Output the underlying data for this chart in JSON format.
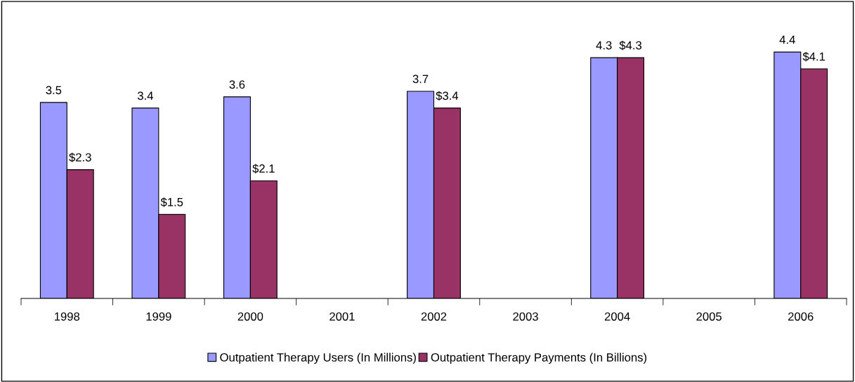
{
  "chart_data": {
    "type": "bar",
    "categories": [
      "1998",
      "1999",
      "2000",
      "2001",
      "2002",
      "2003",
      "2004",
      "2005",
      "2006"
    ],
    "series": [
      {
        "name": "Outpatient Therapy Users (In Millions)",
        "color": "#9999ff",
        "values": [
          3.5,
          3.4,
          3.6,
          null,
          3.7,
          null,
          4.3,
          null,
          4.4
        ],
        "value_labels": [
          "3.5",
          "3.4",
          "3.6",
          null,
          "3.7",
          null,
          "4.3",
          null,
          "4.4"
        ]
      },
      {
        "name": "Outpatient Therapy Payments (In Billions)",
        "color": "#993366",
        "values": [
          2.3,
          1.5,
          2.1,
          null,
          3.4,
          null,
          4.3,
          null,
          4.1
        ],
        "value_labels": [
          "$2.3",
          "$1.5",
          "$2.1",
          null,
          "$3.4",
          null,
          "$4.3",
          null,
          "$4.1"
        ]
      }
    ],
    "legend": "bottom",
    "grid": false
  }
}
